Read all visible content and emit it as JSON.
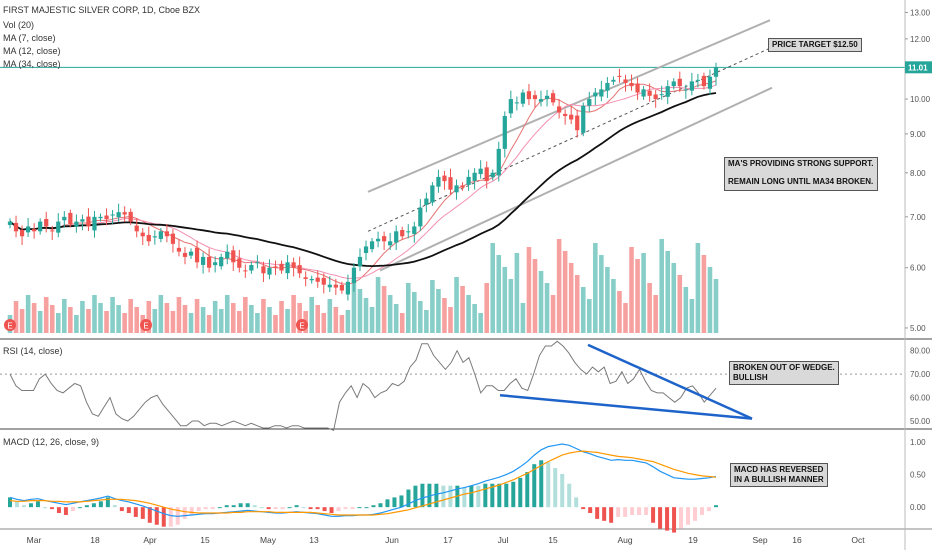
{
  "header": {
    "title": "FIRST MAJESTIC SILVER CORP, 1D, Cboe BZX",
    "indicators": [
      "Vol (20)",
      "MA (7, close)",
      "MA (12, close)",
      "MA (34, close)"
    ]
  },
  "rsi_panel": {
    "label": "RSI (14, close)"
  },
  "macd_panel": {
    "label": "MACD (12, 26, close, 9)"
  },
  "annotations": {
    "price_target": "PRICE TARGET $12.50",
    "ma_support_1": "MA'S PROVIDING STRONG SUPPORT.",
    "ma_support_2": "REMAIN LONG UNTIL MA34 BROKEN.",
    "rsi_note_1": "BROKEN OUT OF WEDGE.",
    "rsi_note_2": "BULLISH",
    "macd_note_1": "MACD HAS REVERSED",
    "macd_note_2": "IN A BULLISH MANNER"
  },
  "earnings_marker": "E",
  "colors": {
    "up": "#26a69a",
    "down": "#ef5350",
    "ma7": "#e57373",
    "ma12": "#f48fb1",
    "ma34": "#111111",
    "channel": "#b0b0b0",
    "wedge": "#1e63c9",
    "macd": "#2196f3",
    "signal": "#ff9800",
    "last_price": "#26a69a"
  },
  "chart_data": {
    "type": "candlestick",
    "x_tick_labels": [
      "Mar",
      "18",
      "Apr",
      "15",
      "May",
      "13",
      "Jun",
      "17",
      "Jul",
      "15",
      "Aug",
      "19",
      "Sep",
      "16",
      "Oct"
    ],
    "price_axis": {
      "ticks": [
        5.0,
        6.0,
        7.0,
        8.0,
        9.0,
        10.0,
        11.0,
        12.0,
        13.0
      ],
      "ylim": [
        4.85,
        13.5
      ],
      "scale": "log"
    },
    "last_price": 11.01,
    "last_price_label": "11.01",
    "close": [
      6.9,
      6.7,
      6.6,
      6.8,
      6.7,
      6.9,
      6.8,
      6.7,
      6.9,
      7.0,
      6.85,
      6.9,
      6.95,
      6.8,
      7.0,
      7.0,
      6.95,
      7.05,
      7.1,
      7.05,
      6.9,
      6.7,
      6.6,
      6.5,
      6.6,
      6.7,
      6.6,
      6.45,
      6.3,
      6.2,
      6.3,
      6.1,
      6.2,
      6.0,
      6.1,
      6.2,
      6.3,
      6.1,
      6.0,
      5.95,
      6.05,
      6.1,
      5.9,
      6.0,
      6.0,
      5.95,
      6.1,
      6.0,
      5.9,
      5.8,
      5.8,
      5.75,
      5.7,
      5.7,
      5.65,
      5.6,
      5.75,
      6.0,
      6.2,
      6.4,
      6.5,
      6.55,
      6.5,
      6.5,
      6.7,
      6.6,
      6.7,
      6.8,
      7.2,
      7.4,
      7.7,
      7.9,
      7.8,
      7.6,
      7.7,
      7.65,
      7.9,
      8.0,
      8.1,
      7.8,
      8.0,
      8.6,
      9.5,
      10.0,
      9.9,
      10.2,
      10.0,
      10.0,
      10.0,
      10.1,
      9.9,
      9.6,
      9.5,
      9.4,
      9.1,
      9.8,
      10.0,
      10.2,
      10.3,
      10.5,
      10.6,
      10.7,
      10.5,
      10.4,
      10.2,
      10.3,
      10.1,
      10.0,
      10.15,
      10.4,
      10.55,
      10.4,
      10.3,
      10.55,
      10.6,
      10.4,
      10.7,
      11.01
    ],
    "rsi": {
      "ticks": [
        50,
        60,
        70,
        80
      ],
      "ylim": [
        47,
        85
      ],
      "overbought": 70,
      "values": [
        70,
        65,
        63,
        63,
        63,
        68,
        70,
        66,
        63,
        62,
        64,
        66,
        65,
        58,
        53,
        52,
        56,
        60,
        53,
        51,
        50,
        52,
        55,
        58,
        60,
        61,
        57,
        54,
        51,
        48,
        48,
        50,
        50,
        48,
        49,
        49,
        48,
        49,
        50,
        49,
        48,
        49,
        48,
        47,
        47,
        48,
        48,
        47,
        48,
        48,
        47,
        47,
        47,
        47,
        47,
        46,
        58,
        62,
        65,
        60,
        66,
        64,
        60,
        62,
        63,
        66,
        65,
        67,
        73,
        76,
        83,
        83,
        78,
        75,
        72,
        75,
        80,
        75,
        77,
        70,
        62,
        65,
        65,
        63,
        63,
        66,
        68,
        64,
        63,
        70,
        78,
        82,
        82,
        84,
        82,
        79,
        75,
        72,
        70,
        73,
        71,
        73,
        66,
        67,
        71,
        66,
        68,
        72,
        67,
        63,
        62,
        62,
        60,
        58,
        60,
        64,
        65,
        62,
        58,
        61,
        64
      ]
    },
    "macd": {
      "ticks": [
        0.0,
        0.5,
        1.0
      ],
      "ylim": [
        -0.32,
        1.2
      ],
      "values": [
        0.15,
        0.12,
        0.1,
        0.12,
        0.13,
        0.1,
        0.08,
        0.06,
        0.04,
        0.06,
        0.08,
        0.1,
        0.12,
        0.14,
        0.17,
        0.13,
        0.1,
        0.08,
        0.05,
        0.02,
        -0.02,
        -0.06,
        -0.1,
        -0.13,
        -0.14,
        -0.13,
        -0.12,
        -0.11,
        -0.1,
        -0.1,
        -0.09,
        -0.08,
        -0.07,
        -0.06,
        -0.05,
        -0.06,
        -0.07,
        -0.08,
        -0.09,
        -0.09,
        -0.08,
        -0.07,
        -0.08,
        -0.09,
        -0.1,
        -0.12,
        -0.14,
        -0.14,
        -0.13,
        -0.13,
        -0.12,
        -0.12,
        -0.11,
        -0.09,
        -0.06,
        -0.03,
        0.0,
        0.05,
        0.1,
        0.14,
        0.17,
        0.2,
        0.22,
        0.25,
        0.28,
        0.3,
        0.33,
        0.36,
        0.4,
        0.43,
        0.46,
        0.5,
        0.55,
        0.62,
        0.7,
        0.8,
        0.88,
        0.93,
        0.95,
        0.97,
        0.95,
        0.9,
        0.85,
        0.82,
        0.78,
        0.75,
        0.72,
        0.73,
        0.72,
        0.72,
        0.7,
        0.68,
        0.62,
        0.55,
        0.5,
        0.45,
        0.44,
        0.43,
        0.43,
        0.44,
        0.45,
        0.47
      ],
      "signal": [
        0.1,
        0.09,
        0.09,
        0.1,
        0.1,
        0.1,
        0.09,
        0.09,
        0.08,
        0.08,
        0.08,
        0.09,
        0.1,
        0.11,
        0.12,
        0.12,
        0.12,
        0.11,
        0.1,
        0.08,
        0.06,
        0.03,
        0.0,
        -0.03,
        -0.05,
        -0.07,
        -0.08,
        -0.09,
        -0.09,
        -0.09,
        -0.09,
        -0.09,
        -0.08,
        -0.08,
        -0.07,
        -0.07,
        -0.07,
        -0.07,
        -0.08,
        -0.08,
        -0.08,
        -0.08,
        -0.08,
        -0.08,
        -0.09,
        -0.1,
        -0.11,
        -0.12,
        -0.12,
        -0.12,
        -0.12,
        -0.12,
        -0.12,
        -0.11,
        -0.1,
        -0.08,
        -0.06,
        -0.04,
        -0.01,
        0.02,
        0.05,
        0.08,
        0.11,
        0.14,
        0.17,
        0.2,
        0.22,
        0.25,
        0.28,
        0.31,
        0.34,
        0.38,
        0.42,
        0.47,
        0.52,
        0.58,
        0.64,
        0.7,
        0.75,
        0.8,
        0.83,
        0.85,
        0.86,
        0.85,
        0.84,
        0.82,
        0.8,
        0.78,
        0.77,
        0.76,
        0.74,
        0.72,
        0.7,
        0.66,
        0.62,
        0.58,
        0.55,
        0.52,
        0.5,
        0.48,
        0.47,
        0.46
      ]
    }
  }
}
